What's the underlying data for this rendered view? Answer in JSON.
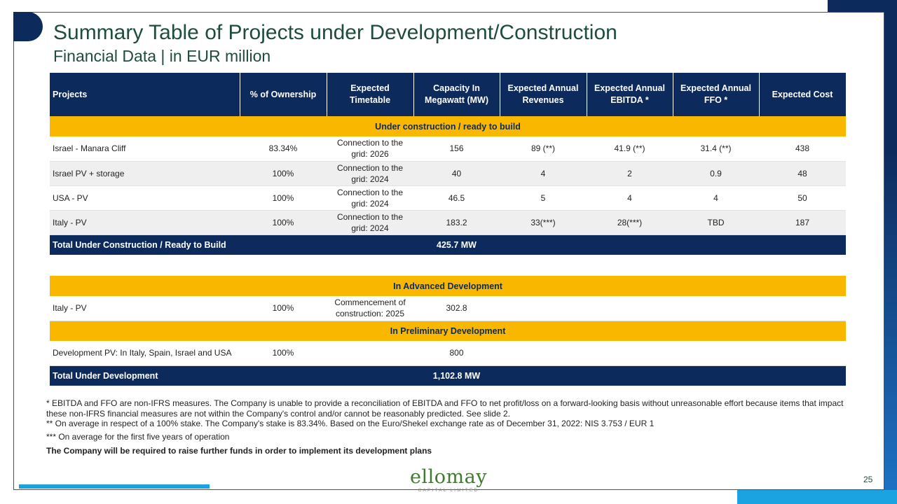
{
  "title": "Summary Table of Projects under Development/Construction",
  "subtitle": "Financial Data | in EUR million",
  "table": {
    "headers": [
      "Projects",
      "% of Ownership",
      "Expected Timetable",
      "Capacity In Megawatt (MW)",
      "Expected Annual Revenues",
      "Expected Annual EBITDA *",
      "Expected Annual FFO *",
      "Expected Cost"
    ],
    "section_construction": "Under construction  / ready to build",
    "construction_rows": [
      [
        "Israel - Manara Cliff",
        "83.34%",
        "Connection to the grid: 2026",
        "156",
        "89 (**)",
        "41.9 (**)",
        "31.4 (**)",
        "438"
      ],
      [
        "Israel PV + storage",
        "100%",
        "Connection to the grid: 2024",
        "40",
        "4",
        "2",
        "0.9",
        "48"
      ],
      [
        "USA - PV",
        "100%",
        "Connection to the grid: 2024",
        "46.5",
        "5",
        "4",
        "4",
        "50"
      ],
      [
        "Italy - PV",
        "100%",
        "Connection to the grid: 2024",
        "183.2",
        "33(***)",
        "28(***)",
        "TBD",
        "187"
      ]
    ],
    "total_construction_label": "Total Under Construction  / Ready to Build",
    "total_construction_value": "425.7  MW"
  },
  "dev_table": {
    "section_advanced": "In Advanced Development",
    "advanced_row": [
      "Italy - PV",
      "100%",
      "Commencement of construction: 2025",
      "302.8"
    ],
    "section_preliminary": "In Preliminary Development",
    "preliminary_row": [
      "Development  PV: In Italy, Spain, Israel and USA",
      "100%",
      "",
      "800"
    ],
    "total_label": "Total Under Development",
    "total_value": "1,102.8 MW"
  },
  "notes": {
    "note1": "* EBITDA and FFO are non-IFRS measures. The Company is unable to provide  a reconciliation of EBITDA and FFO to net profit/loss on a forward-looking  basis without unreasonable  effort because items that impact these non-IFRS financial measures are not within the Company's control and/or cannot be reasonably  predicted.  See slide 2.",
    "note2": "** On average  in respect of a 100% stake. The Company's stake is 83.34%. Based on the Euro/Shekel exchange rate as of December 31, 2022: NIS 3.753 / EUR 1",
    "note3": "*** On average  for the first five  years of operation",
    "closing": "The Company  will be required to raise further funds  in order to implement its development plans"
  },
  "logo": {
    "word": "ellomay",
    "tagline": "CAPITAL LIMITED"
  },
  "page_number": "25",
  "colors": {
    "navy": "#0d2a5c",
    "gold": "#f9b700",
    "green": "#1e4d3c",
    "cyan": "#1aa3e0"
  }
}
